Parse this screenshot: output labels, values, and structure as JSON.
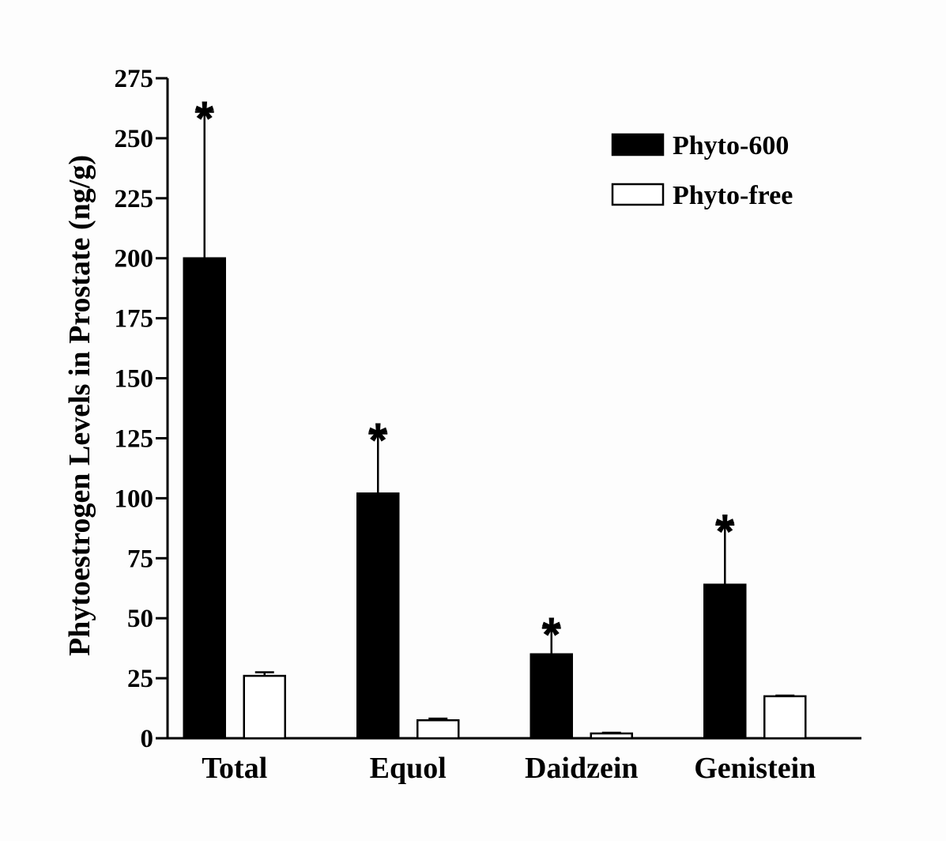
{
  "chart_data": {
    "type": "bar",
    "title": "",
    "xlabel": "",
    "ylabel": "Phytoestrogen Levels in Prostate (ng/g)",
    "categories": [
      "Total",
      "Equol",
      "Daidzein",
      "Genistein"
    ],
    "ylim": [
      0,
      275
    ],
    "yticks": [
      0,
      25,
      50,
      75,
      100,
      125,
      150,
      175,
      200,
      225,
      250,
      275
    ],
    "grid": false,
    "legend_position": "top-right",
    "series": [
      {
        "name": "Phyto-600",
        "fill": "#000000",
        "values": [
          200,
          102,
          35,
          64
        ],
        "errors": [
          61,
          25,
          11,
          25
        ],
        "significant": [
          true,
          true,
          true,
          true
        ]
      },
      {
        "name": "Phyto-free",
        "fill": "#ffffff",
        "values": [
          26,
          7.5,
          2,
          17.5
        ],
        "errors": [
          1.5,
          0.7,
          0.3,
          0.3
        ],
        "significant": [
          false,
          false,
          false,
          false
        ]
      }
    ],
    "significance_marker": "*"
  }
}
